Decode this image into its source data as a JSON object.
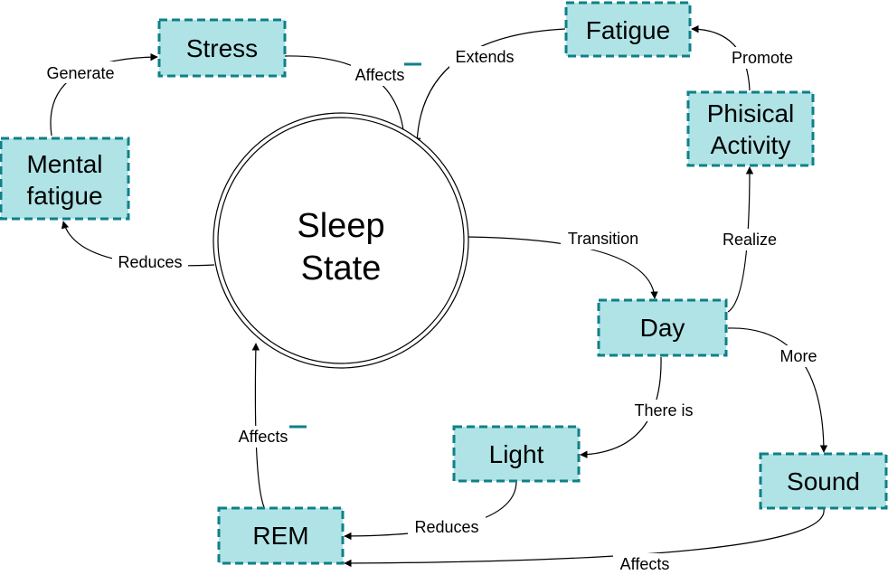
{
  "colors": {
    "node_fill": "#b0e3e6",
    "node_stroke": "#0e8088",
    "edge": "#000000"
  },
  "center": {
    "line1": "Sleep",
    "line2": "State"
  },
  "nodes": {
    "stress": "Stress",
    "fatigue": "Fatigue",
    "mental_fatigue_1": "Mental",
    "mental_fatigue_2": "fatigue",
    "physical_activity_1": "Phisical",
    "physical_activity_2": "Activity",
    "day": "Day",
    "light": "Light",
    "sound": "Sound",
    "rem": "REM"
  },
  "edges": {
    "generate": "Generate",
    "affects_stress": "Affects",
    "extends": "Extends",
    "promote": "Promote",
    "reduces_mental": "Reduces",
    "transition": "Transition",
    "realize": "Realize",
    "more": "More",
    "there_is": "There is",
    "reduces_light": "Reduces",
    "affects_rem": "Affects",
    "affects_sound": "Affects"
  }
}
